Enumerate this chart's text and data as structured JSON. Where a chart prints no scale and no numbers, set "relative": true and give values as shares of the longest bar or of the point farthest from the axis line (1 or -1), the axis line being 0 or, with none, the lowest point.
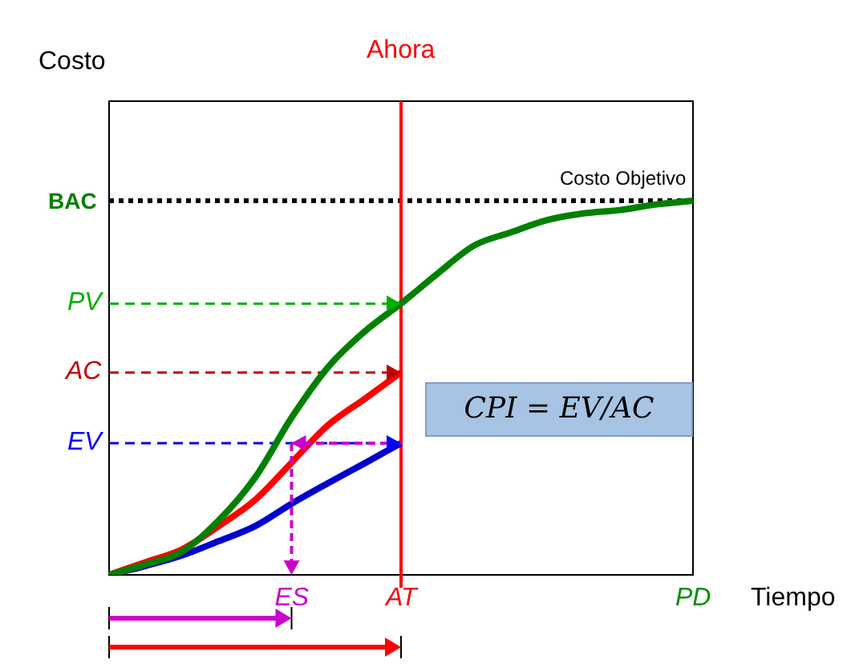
{
  "chart_data": {
    "type": "line",
    "relative": true,
    "xlabel": "Tiempo",
    "ylabel": "Costo",
    "categories": [
      null,
      null,
      null,
      null,
      null,
      "ES",
      null,
      null,
      "AT",
      null,
      null,
      null,
      null,
      null,
      null,
      null,
      "PD"
    ],
    "series": [
      {
        "color": "#008000",
        "values": [
          0,
          0.028,
          0.062,
          0.145,
          0.26,
          0.42,
          0.555,
          0.65,
          0.725,
          0.805,
          0.88,
          0.915,
          0.948,
          0.966,
          0.975,
          0.99,
          1
        ]
      },
      {
        "color": "#ff0000",
        "values": [
          0,
          0.034,
          0.068,
          0.13,
          0.2,
          0.3,
          0.4,
          0.47,
          0.541,
          null,
          null,
          null,
          null,
          null,
          null,
          null,
          null
        ]
      },
      {
        "color": "#0000cc",
        "values": [
          0,
          0.024,
          0.052,
          0.09,
          0.13,
          0.19,
          0.245,
          0.298,
          0.352,
          null,
          null,
          null,
          null,
          null,
          null,
          null,
          null
        ]
      }
    ],
    "ref_lines": [
      {
        "axis": "y",
        "value": 1,
        "label": "BAC",
        "color": "#000000",
        "line_style": "dotted"
      },
      {
        "axis": "y",
        "value": 0.725,
        "label": "PV",
        "color": "#00b000",
        "line_style": "dashed"
      },
      {
        "axis": "y",
        "value": 0.541,
        "label": "AC",
        "color": "#c00000",
        "line_style": "dashed"
      },
      {
        "axis": "y",
        "value": 0.352,
        "label": "EV",
        "color": "#0000ff",
        "line_style": "dashed"
      },
      {
        "axis": "x",
        "value": "AT",
        "label": "Ahora",
        "color": "#ff0000",
        "line_style": "solid"
      }
    ],
    "annotations": [
      {
        "text": "Costo Objetivo",
        "y": 1
      },
      "CPI = EV/AC"
    ],
    "legend": false
  }
}
